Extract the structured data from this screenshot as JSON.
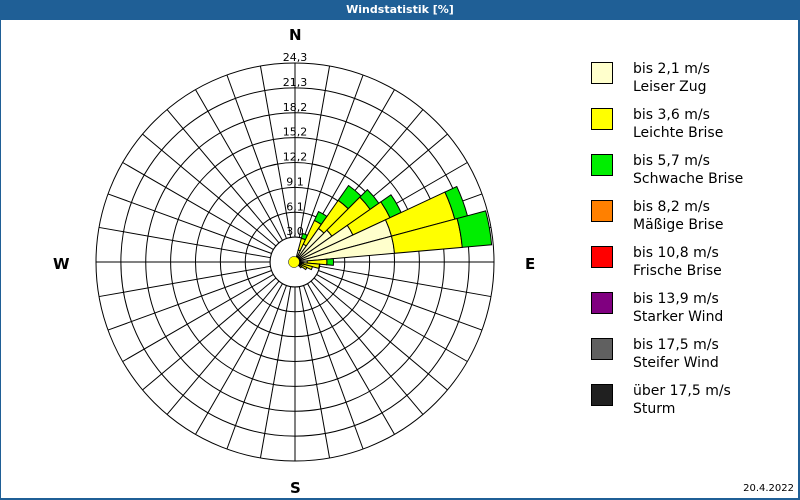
{
  "window": {
    "title": "Windstatistik [%]"
  },
  "footer": {
    "date": "20.4.2022"
  },
  "compass": {
    "n": "N",
    "e": "E",
    "s": "S",
    "w": "W"
  },
  "legend": [
    {
      "range": "bis 2,1 m/s",
      "name": "Leiser Zug",
      "color": "#ffffcc"
    },
    {
      "range": "bis 3,6 m/s",
      "name": "Leichte Brise",
      "color": "#ffff00"
    },
    {
      "range": "bis 5,7 m/s",
      "name": "Schwache Brise",
      "color": "#00ee00"
    },
    {
      "range": "bis 8,2 m/s",
      "name": "Mäßige Brise",
      "color": "#ff8000"
    },
    {
      "range": "bis 10,8 m/s",
      "name": "Frische Brise",
      "color": "#ff0000"
    },
    {
      "range": "bis 13,9 m/s",
      "name": "Starker Wind",
      "color": "#800080"
    },
    {
      "range": "bis 17,5 m/s",
      "name": "Steifer Wind",
      "color": "#606060"
    },
    {
      "range": "über 17,5 m/s",
      "name": "Sturm",
      "color": "#202020"
    }
  ],
  "chart_data": {
    "type": "wind-rose",
    "title": "Windstatistik [%]",
    "unit": "%",
    "ring_labels": [
      "3,0",
      "6,1",
      "9,1",
      "12,2",
      "15,2",
      "18,2",
      "21,3",
      "24,3"
    ],
    "rmax": 24.3,
    "sector_width_deg": 10,
    "series_names": [
      "Leiser Zug",
      "Leichte Brise",
      "Schwache Brise",
      "Mäßige Brise",
      "Frische Brise",
      "Starker Wind",
      "Steifer Wind",
      "Sturm"
    ],
    "sectors": [
      {
        "dir": 20,
        "cum": [
          1.5,
          3.0,
          3.6
        ]
      },
      {
        "dir": 30,
        "cum": [
          2.4,
          5.6,
          6.8
        ]
      },
      {
        "dir": 40,
        "cum": [
          5.0,
          9.2,
          11.4
        ]
      },
      {
        "dir": 50,
        "cum": [
          5.5,
          11.2,
          12.5
        ]
      },
      {
        "dir": 60,
        "cum": [
          7.8,
          12.8,
          14.3
        ]
      },
      {
        "dir": 70,
        "cum": [
          12.2,
          20.2,
          21.8
        ]
      },
      {
        "dir": 80,
        "cum": [
          12.2,
          20.5,
          24.1
        ]
      },
      {
        "dir": 90,
        "cum": [
          1.5,
          3.9,
          4.7
        ]
      },
      {
        "dir": 100,
        "cum": [
          1.0,
          3.0
        ]
      },
      {
        "dir": 110,
        "cum": [
          0.8,
          2.2
        ]
      },
      {
        "dir": 120,
        "cum": [
          0.6,
          1.6
        ]
      },
      {
        "dir": 130,
        "cum": [
          0.5,
          1.0
        ]
      }
    ],
    "calm_circle_pct": 3.0
  }
}
